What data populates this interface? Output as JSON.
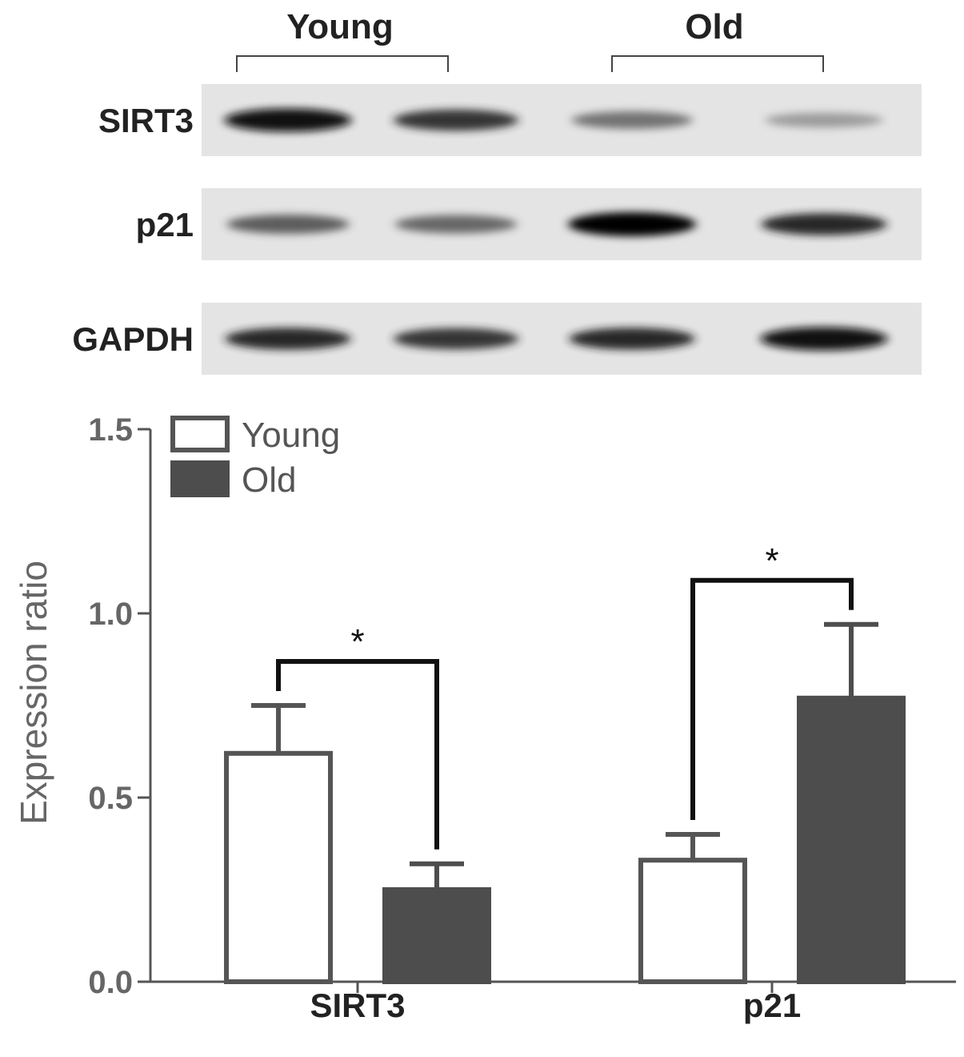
{
  "blot": {
    "groups": [
      "Young",
      "Old"
    ],
    "rows": [
      {
        "label": "SIRT3",
        "intensity": [
          0.95,
          0.8,
          0.55,
          0.35
        ]
      },
      {
        "label": "p21",
        "intensity": [
          0.65,
          0.6,
          1.0,
          0.85
        ]
      },
      {
        "label": "GAPDH",
        "intensity": [
          0.85,
          0.8,
          0.85,
          0.95
        ]
      }
    ]
  },
  "chart_data": {
    "type": "bar",
    "categories": [
      "SIRT3",
      "p21"
    ],
    "series": [
      {
        "name": "Young",
        "values": [
          0.62,
          0.33
        ],
        "errors": [
          0.13,
          0.07
        ],
        "color": "#ffffff",
        "stroke": "#555555"
      },
      {
        "name": "Old",
        "values": [
          0.25,
          0.77
        ],
        "errors": [
          0.07,
          0.2
        ],
        "color": "#4d4d4d",
        "stroke": "#4d4d4d"
      }
    ],
    "title": "",
    "xlabel": "",
    "ylabel": "Expression ratio",
    "ylim": [
      0,
      1.5
    ],
    "yticks": [
      "0.0",
      "0.5",
      "1.0",
      "1.5"
    ],
    "legend_position": "top-left",
    "significance": [
      {
        "category": "SIRT3",
        "label": "*"
      },
      {
        "category": "p21",
        "label": "*"
      }
    ]
  }
}
